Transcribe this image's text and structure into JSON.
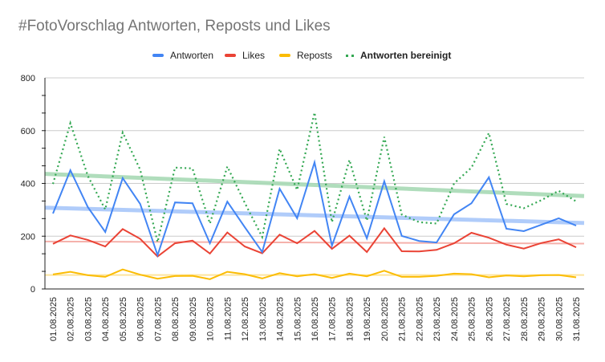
{
  "chart_data": {
    "type": "line",
    "title": "#FotoVorschlag Antworten, Reposts und Likes",
    "xlabel": "",
    "ylabel": "",
    "ylim": [
      0,
      800
    ],
    "yticks": [
      "0",
      "200",
      "400",
      "600",
      "800"
    ],
    "grid": true,
    "legend_position": "top",
    "categories": [
      "01.08.2025",
      "02.08.2025",
      "03.08.2025",
      "04.08.2025",
      "05.08.2025",
      "06.08.2025",
      "07.08.2025",
      "08.08.2025",
      "09.08.2025",
      "10.08.2025",
      "11.08.2025",
      "12.08.2025",
      "13.08.2025",
      "14.08.2025",
      "15.08.2025",
      "16.08.2025",
      "17.08.2025",
      "18.08.2025",
      "19.08.2025",
      "20.08.2025",
      "21.08.2025",
      "22.08.2025",
      "23.08.2025",
      "24.08.2025",
      "25.08.2025",
      "26.08.2025",
      "27.08.2025",
      "28.08.2025",
      "29.08.2025",
      "30.08.2025",
      "31.08.2025"
    ],
    "series": [
      {
        "name": "Antworten",
        "color": "#4285f4",
        "style": "solid",
        "legend_bold": false,
        "values": [
          286,
          450,
          310,
          216,
          420,
          322,
          128,
          328,
          325,
          173,
          331,
          234,
          140,
          380,
          268,
          480,
          164,
          350,
          192,
          408,
          201,
          182,
          176,
          283,
          325,
          423,
          228,
          219,
          243,
          268,
          240
        ],
        "trendline": {
          "start": 308,
          "end": 250,
          "color": "#a8c7fa"
        }
      },
      {
        "name": "Likes",
        "color": "#ea4335",
        "style": "solid",
        "legend_bold": false,
        "values": [
          171,
          203,
          186,
          161,
          227,
          190,
          123,
          173,
          183,
          134,
          214,
          161,
          135,
          206,
          173,
          220,
          152,
          202,
          140,
          230,
          143,
          142,
          148,
          173,
          213,
          194,
          168,
          153,
          174,
          188,
          158
        ],
        "trendline": {
          "start": 180,
          "end": 172,
          "color": "#f4a9a3"
        }
      },
      {
        "name": "Reposts",
        "color": "#fbbc04",
        "style": "solid",
        "legend_bold": false,
        "values": [
          55,
          65,
          52,
          46,
          74,
          54,
          39,
          49,
          50,
          37,
          65,
          56,
          40,
          60,
          48,
          56,
          42,
          58,
          48,
          69,
          46,
          46,
          50,
          58,
          56,
          44,
          51,
          48,
          52,
          53,
          44
        ],
        "trendline": {
          "start": 53,
          "end": 53,
          "color": "#fde293"
        }
      },
      {
        "name": "Antworten bereinigt",
        "color": "#34a853",
        "style": "dotted",
        "legend_bold": true,
        "values": [
          398,
          628,
          428,
          301,
          593,
          452,
          178,
          460,
          457,
          248,
          464,
          326,
          197,
          531,
          375,
          669,
          253,
          489,
          259,
          576,
          282,
          253,
          248,
          400,
          460,
          591,
          322,
          306,
          336,
          372,
          332
        ],
        "trendline": {
          "start": 436,
          "end": 352,
          "color": "#a8dab5"
        }
      }
    ]
  }
}
